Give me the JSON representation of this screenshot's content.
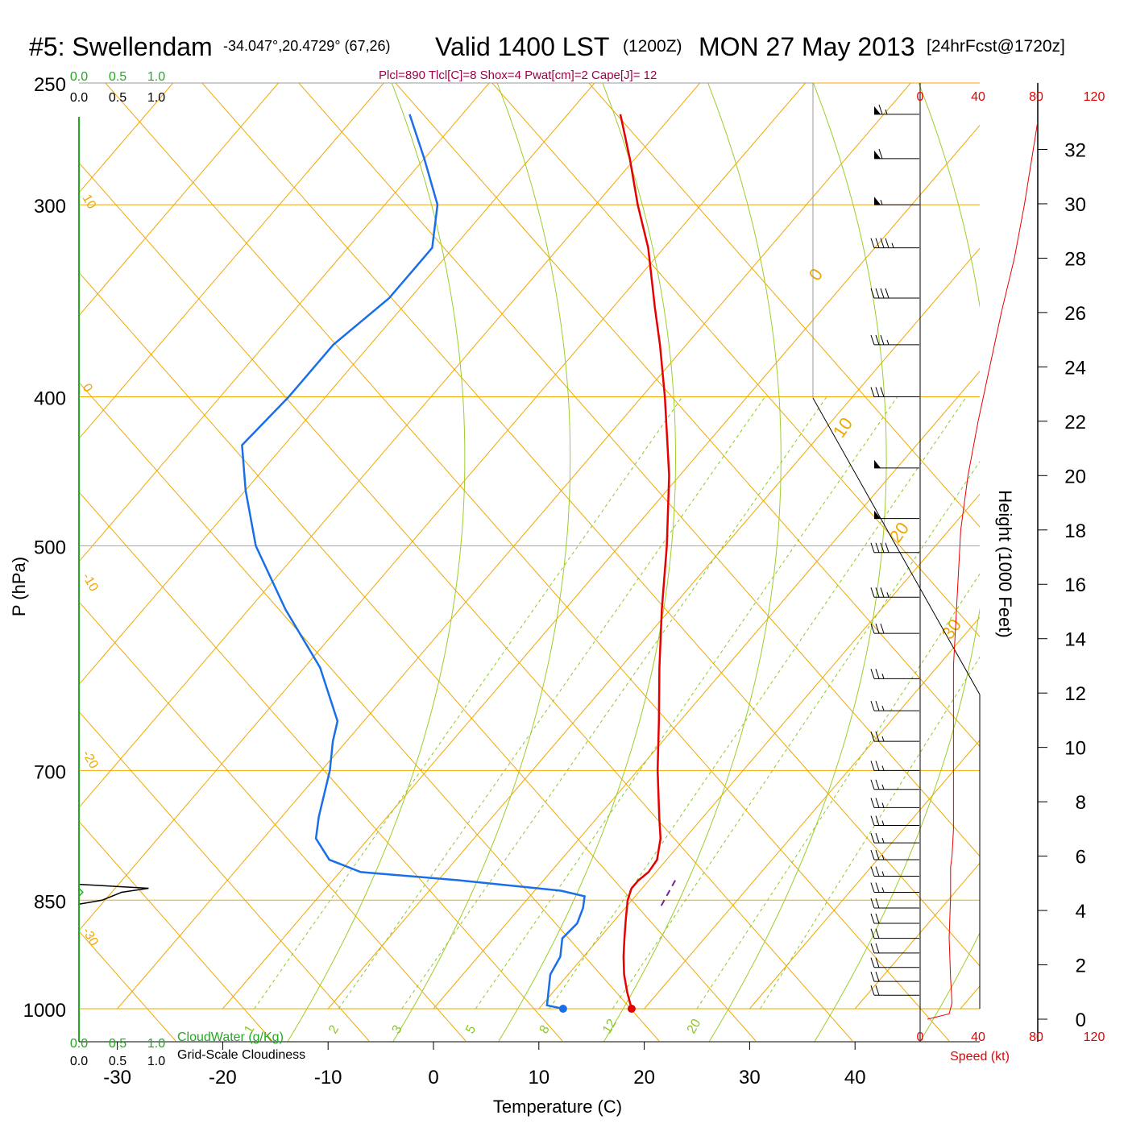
{
  "header": {
    "station": "#5: Swellendam",
    "location": "-34.047°,20.4729° (67,26)",
    "valid": "Valid 1400 LST",
    "zulu": "(1200Z)",
    "date": "MON 27 May 2013",
    "forecast": "[24hrFcst@1720z]",
    "indices": "Plcl=890 Tlcl[C]=8 Shox=4 Pwat[cm]=2 Cape[J]= 12"
  },
  "colors": {
    "temperature": "#e60000",
    "dewpoint": "#1a6fe8",
    "isotherm_isobar": "#f0a800",
    "mixing_ratio": "#8cc820",
    "moist_adiabat": "#9ccd2a",
    "speed_profile": "#e60000",
    "cloud": "#22aa22",
    "parcel": "#7a1fa2",
    "indices_text": "#a0004a"
  },
  "chart_data": {
    "type": "line",
    "subtype": "skew-T log-P sounding",
    "xlabel": "Temperature (C)",
    "ylabel": "P (hPa)",
    "right_axis_label": "Height (1000 Feet)",
    "x_ticks": [
      -30,
      -20,
      -10,
      0,
      10,
      20,
      30,
      40
    ],
    "pressure_ticks": [
      250,
      300,
      400,
      500,
      700,
      850,
      1000
    ],
    "height_ticks": [
      0,
      2,
      4,
      6,
      8,
      10,
      12,
      14,
      16,
      18,
      20,
      22,
      24,
      26,
      28,
      30,
      32
    ],
    "speed_axis_label": "Speed (kt)",
    "speed_ticks": [
      0,
      40,
      80,
      120
    ],
    "cloud_axis_label_top": [
      "0.0",
      "0.5",
      "1.0"
    ],
    "cloudwater_label": "CloudWater (g/Kg)",
    "cloudiness_label": "Grid-Scale Cloudiness",
    "isotherm_labels": [
      "10",
      "0",
      "-10",
      "-20",
      "-30",
      "0",
      "10",
      "20",
      "30"
    ],
    "mixing_ratio_labels": [
      "1",
      "2",
      "3",
      "5",
      "8",
      "12",
      "20"
    ],
    "series": [
      {
        "name": "Temperature",
        "points": [
          {
            "p": 1000,
            "t": 18.8
          },
          {
            "p": 975,
            "t": 17.0
          },
          {
            "p": 950,
            "t": 15.3
          },
          {
            "p": 925,
            "t": 13.8
          },
          {
            "p": 900,
            "t": 12.4
          },
          {
            "p": 875,
            "t": 11.0
          },
          {
            "p": 850,
            "t": 9.6
          },
          {
            "p": 835,
            "t": 9.0
          },
          {
            "p": 825,
            "t": 9.0
          },
          {
            "p": 815,
            "t": 9.3
          },
          {
            "p": 800,
            "t": 9.1
          },
          {
            "p": 775,
            "t": 7.7
          },
          {
            "p": 750,
            "t": 5.8
          },
          {
            "p": 700,
            "t": 1.9
          },
          {
            "p": 650,
            "t": -2.0
          },
          {
            "p": 600,
            "t": -6.3
          },
          {
            "p": 550,
            "t": -10.8
          },
          {
            "p": 500,
            "t": -15.5
          },
          {
            "p": 450,
            "t": -21.0
          },
          {
            "p": 400,
            "t": -27.8
          },
          {
            "p": 370,
            "t": -32.5
          },
          {
            "p": 350,
            "t": -36.0
          },
          {
            "p": 320,
            "t": -41.5
          },
          {
            "p": 300,
            "t": -46.0
          },
          {
            "p": 280,
            "t": -50.5
          },
          {
            "p": 262,
            "t": -55.0
          }
        ]
      },
      {
        "name": "Dewpoint",
        "points": [
          {
            "p": 1000,
            "t": 12.3
          },
          {
            "p": 995,
            "t": 10.5
          },
          {
            "p": 950,
            "t": 8.3
          },
          {
            "p": 925,
            "t": 7.8
          },
          {
            "p": 900,
            "t": 6.5
          },
          {
            "p": 880,
            "t": 6.7
          },
          {
            "p": 860,
            "t": 6.0
          },
          {
            "p": 845,
            "t": 5.2
          },
          {
            "p": 838,
            "t": 2.5
          },
          {
            "p": 825,
            "t": -8.0
          },
          {
            "p": 815,
            "t": -18.0
          },
          {
            "p": 800,
            "t": -22.0
          },
          {
            "p": 775,
            "t": -25.0
          },
          {
            "p": 750,
            "t": -26.5
          },
          {
            "p": 700,
            "t": -29.2
          },
          {
            "p": 670,
            "t": -31.3
          },
          {
            "p": 650,
            "t": -32.5
          },
          {
            "p": 600,
            "t": -38.5
          },
          {
            "p": 550,
            "t": -46.5
          },
          {
            "p": 500,
            "t": -54.5
          },
          {
            "p": 460,
            "t": -60.0
          },
          {
            "p": 430,
            "t": -64.0
          },
          {
            "p": 400,
            "t": -63.5
          },
          {
            "p": 370,
            "t": -63.5
          },
          {
            "p": 345,
            "t": -62.0
          },
          {
            "p": 320,
            "t": -62.0
          },
          {
            "p": 300,
            "t": -65.0
          },
          {
            "p": 280,
            "t": -70.0
          },
          {
            "p": 262,
            "t": -75.0
          }
        ]
      },
      {
        "name": "Surface temperature",
        "points": [
          {
            "p": 1000,
            "t": 18.8
          }
        ]
      },
      {
        "name": "Surface dewpoint",
        "points": [
          {
            "p": 1000,
            "t": 12.3
          }
        ]
      },
      {
        "name": "Parcel",
        "points": [
          {
            "p": 825,
            "t": 12.5
          },
          {
            "p": 860,
            "t": 13.3
          }
        ]
      },
      {
        "name": "Wind speed (kt)",
        "points": [
          {
            "h": 0,
            "v": 5
          },
          {
            "h": 0.2,
            "v": 20
          },
          {
            "h": 0.6,
            "v": 22
          },
          {
            "h": 1.5,
            "v": 21
          },
          {
            "h": 3,
            "v": 20
          },
          {
            "h": 4.5,
            "v": 21
          },
          {
            "h": 5.6,
            "v": 21
          },
          {
            "h": 6.0,
            "v": 22
          },
          {
            "h": 7,
            "v": 23
          },
          {
            "h": 8,
            "v": 23
          },
          {
            "h": 10,
            "v": 23
          },
          {
            "h": 12,
            "v": 23
          },
          {
            "h": 13,
            "v": 23
          },
          {
            "h": 14,
            "v": 24
          },
          {
            "h": 16,
            "v": 26
          },
          {
            "h": 18,
            "v": 28
          },
          {
            "h": 20,
            "v": 33
          },
          {
            "h": 22,
            "v": 40
          },
          {
            "h": 24,
            "v": 48
          },
          {
            "h": 26,
            "v": 56
          },
          {
            "h": 28,
            "v": 65
          },
          {
            "h": 30,
            "v": 72
          },
          {
            "h": 32,
            "v": 78
          },
          {
            "h": 33,
            "v": 81
          }
        ]
      },
      {
        "name": "Grid-scale cloudiness",
        "points": [
          {
            "p": 830,
            "frac": 0.0
          },
          {
            "p": 835,
            "frac": 0.9
          },
          {
            "p": 840,
            "frac": 0.55
          },
          {
            "p": 850,
            "frac": 0.3
          },
          {
            "p": 855,
            "frac": 0.0
          }
        ]
      },
      {
        "name": "Cloud water (g/Kg)",
        "points": [
          {
            "p": 835,
            "v": 0.0
          },
          {
            "p": 840,
            "v": 0.05
          },
          {
            "p": 845,
            "v": 0.0
          }
        ]
      }
    ],
    "wind_barbs": [
      {
        "p": 262,
        "dir": "W",
        "kt": 65
      },
      {
        "p": 280,
        "dir": "W",
        "kt": 60
      },
      {
        "p": 300,
        "dir": "W",
        "kt": 55
      },
      {
        "p": 320,
        "dir": "W",
        "kt": 45
      },
      {
        "p": 345,
        "dir": "W",
        "kt": 40
      },
      {
        "p": 370,
        "dir": "W",
        "kt": 35
      },
      {
        "p": 400,
        "dir": "W",
        "kt": 30
      },
      {
        "p": 445,
        "dir": "W",
        "kt": 50
      },
      {
        "p": 480,
        "dir": "W",
        "kt": 50
      },
      {
        "p": 505,
        "dir": "W",
        "kt": 40
      },
      {
        "p": 540,
        "dir": "W",
        "kt": 35
      },
      {
        "p": 570,
        "dir": "W",
        "kt": 30
      },
      {
        "p": 610,
        "dir": "W",
        "kt": 25
      },
      {
        "p": 640,
        "dir": "W",
        "kt": 25
      },
      {
        "p": 670,
        "dir": "W",
        "kt": 25
      },
      {
        "p": 700,
        "dir": "W",
        "kt": 25
      },
      {
        "p": 720,
        "dir": "W",
        "kt": 25
      },
      {
        "p": 740,
        "dir": "W",
        "kt": 25
      },
      {
        "p": 760,
        "dir": "W",
        "kt": 25
      },
      {
        "p": 780,
        "dir": "W",
        "kt": 25
      },
      {
        "p": 800,
        "dir": "W",
        "kt": 25
      },
      {
        "p": 820,
        "dir": "W",
        "kt": 25
      },
      {
        "p": 840,
        "dir": "W",
        "kt": 25
      },
      {
        "p": 860,
        "dir": "W",
        "kt": 20
      },
      {
        "p": 880,
        "dir": "W",
        "kt": 20
      },
      {
        "p": 900,
        "dir": "W",
        "kt": 20
      },
      {
        "p": 920,
        "dir": "W",
        "kt": 20
      },
      {
        "p": 940,
        "dir": "W",
        "kt": 20
      },
      {
        "p": 960,
        "dir": "W",
        "kt": 20
      },
      {
        "p": 980,
        "dir": "W",
        "kt": 20
      }
    ]
  }
}
